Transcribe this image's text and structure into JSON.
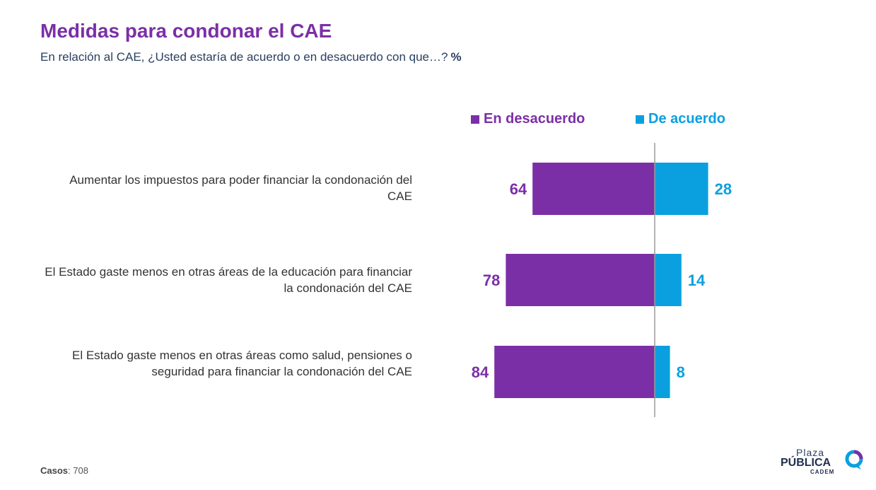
{
  "header": {
    "title": "Medidas para condonar el CAE",
    "subtitle": "En relación al CAE, ¿Usted estaría de acuerdo o en desacuerdo con que…?",
    "unit": "%"
  },
  "legend": {
    "disagree": "En desacuerdo",
    "agree": "De acuerdo"
  },
  "colors": {
    "disagree": "#7b2fa6",
    "agree": "#0aa0df",
    "axis": "#9a9a9a"
  },
  "rows": [
    {
      "label": "Aumentar los impuestos para poder financiar la condonación del CAE"
    },
    {
      "label": "El Estado gaste menos en otras áreas de la educación para financiar la condonación del CAE"
    },
    {
      "label": "El Estado gaste menos en otras áreas como salud, pensiones o seguridad para financiar la condonación del CAE"
    }
  ],
  "chart_data": {
    "type": "bar",
    "orientation": "horizontal-diverging",
    "categories": [
      "Aumentar los impuestos para poder financiar la condonación del CAE",
      "El Estado gaste menos en otras áreas de la educación para financiar la condonación del CAE",
      "El Estado gaste menos en otras áreas como salud, pensiones o seguridad para financiar la condonación del CAE"
    ],
    "series": [
      {
        "name": "En desacuerdo",
        "values": [
          64,
          78,
          84
        ]
      },
      {
        "name": "De acuerdo",
        "values": [
          28,
          14,
          8
        ]
      }
    ],
    "legend_position": "top",
    "grid": false
  },
  "footer": {
    "casos_label": "Casos",
    "casos_value": ": 708"
  },
  "logo": {
    "line1": "Plaza",
    "line2": "PÚBLICA",
    "line3": "CADEM"
  }
}
